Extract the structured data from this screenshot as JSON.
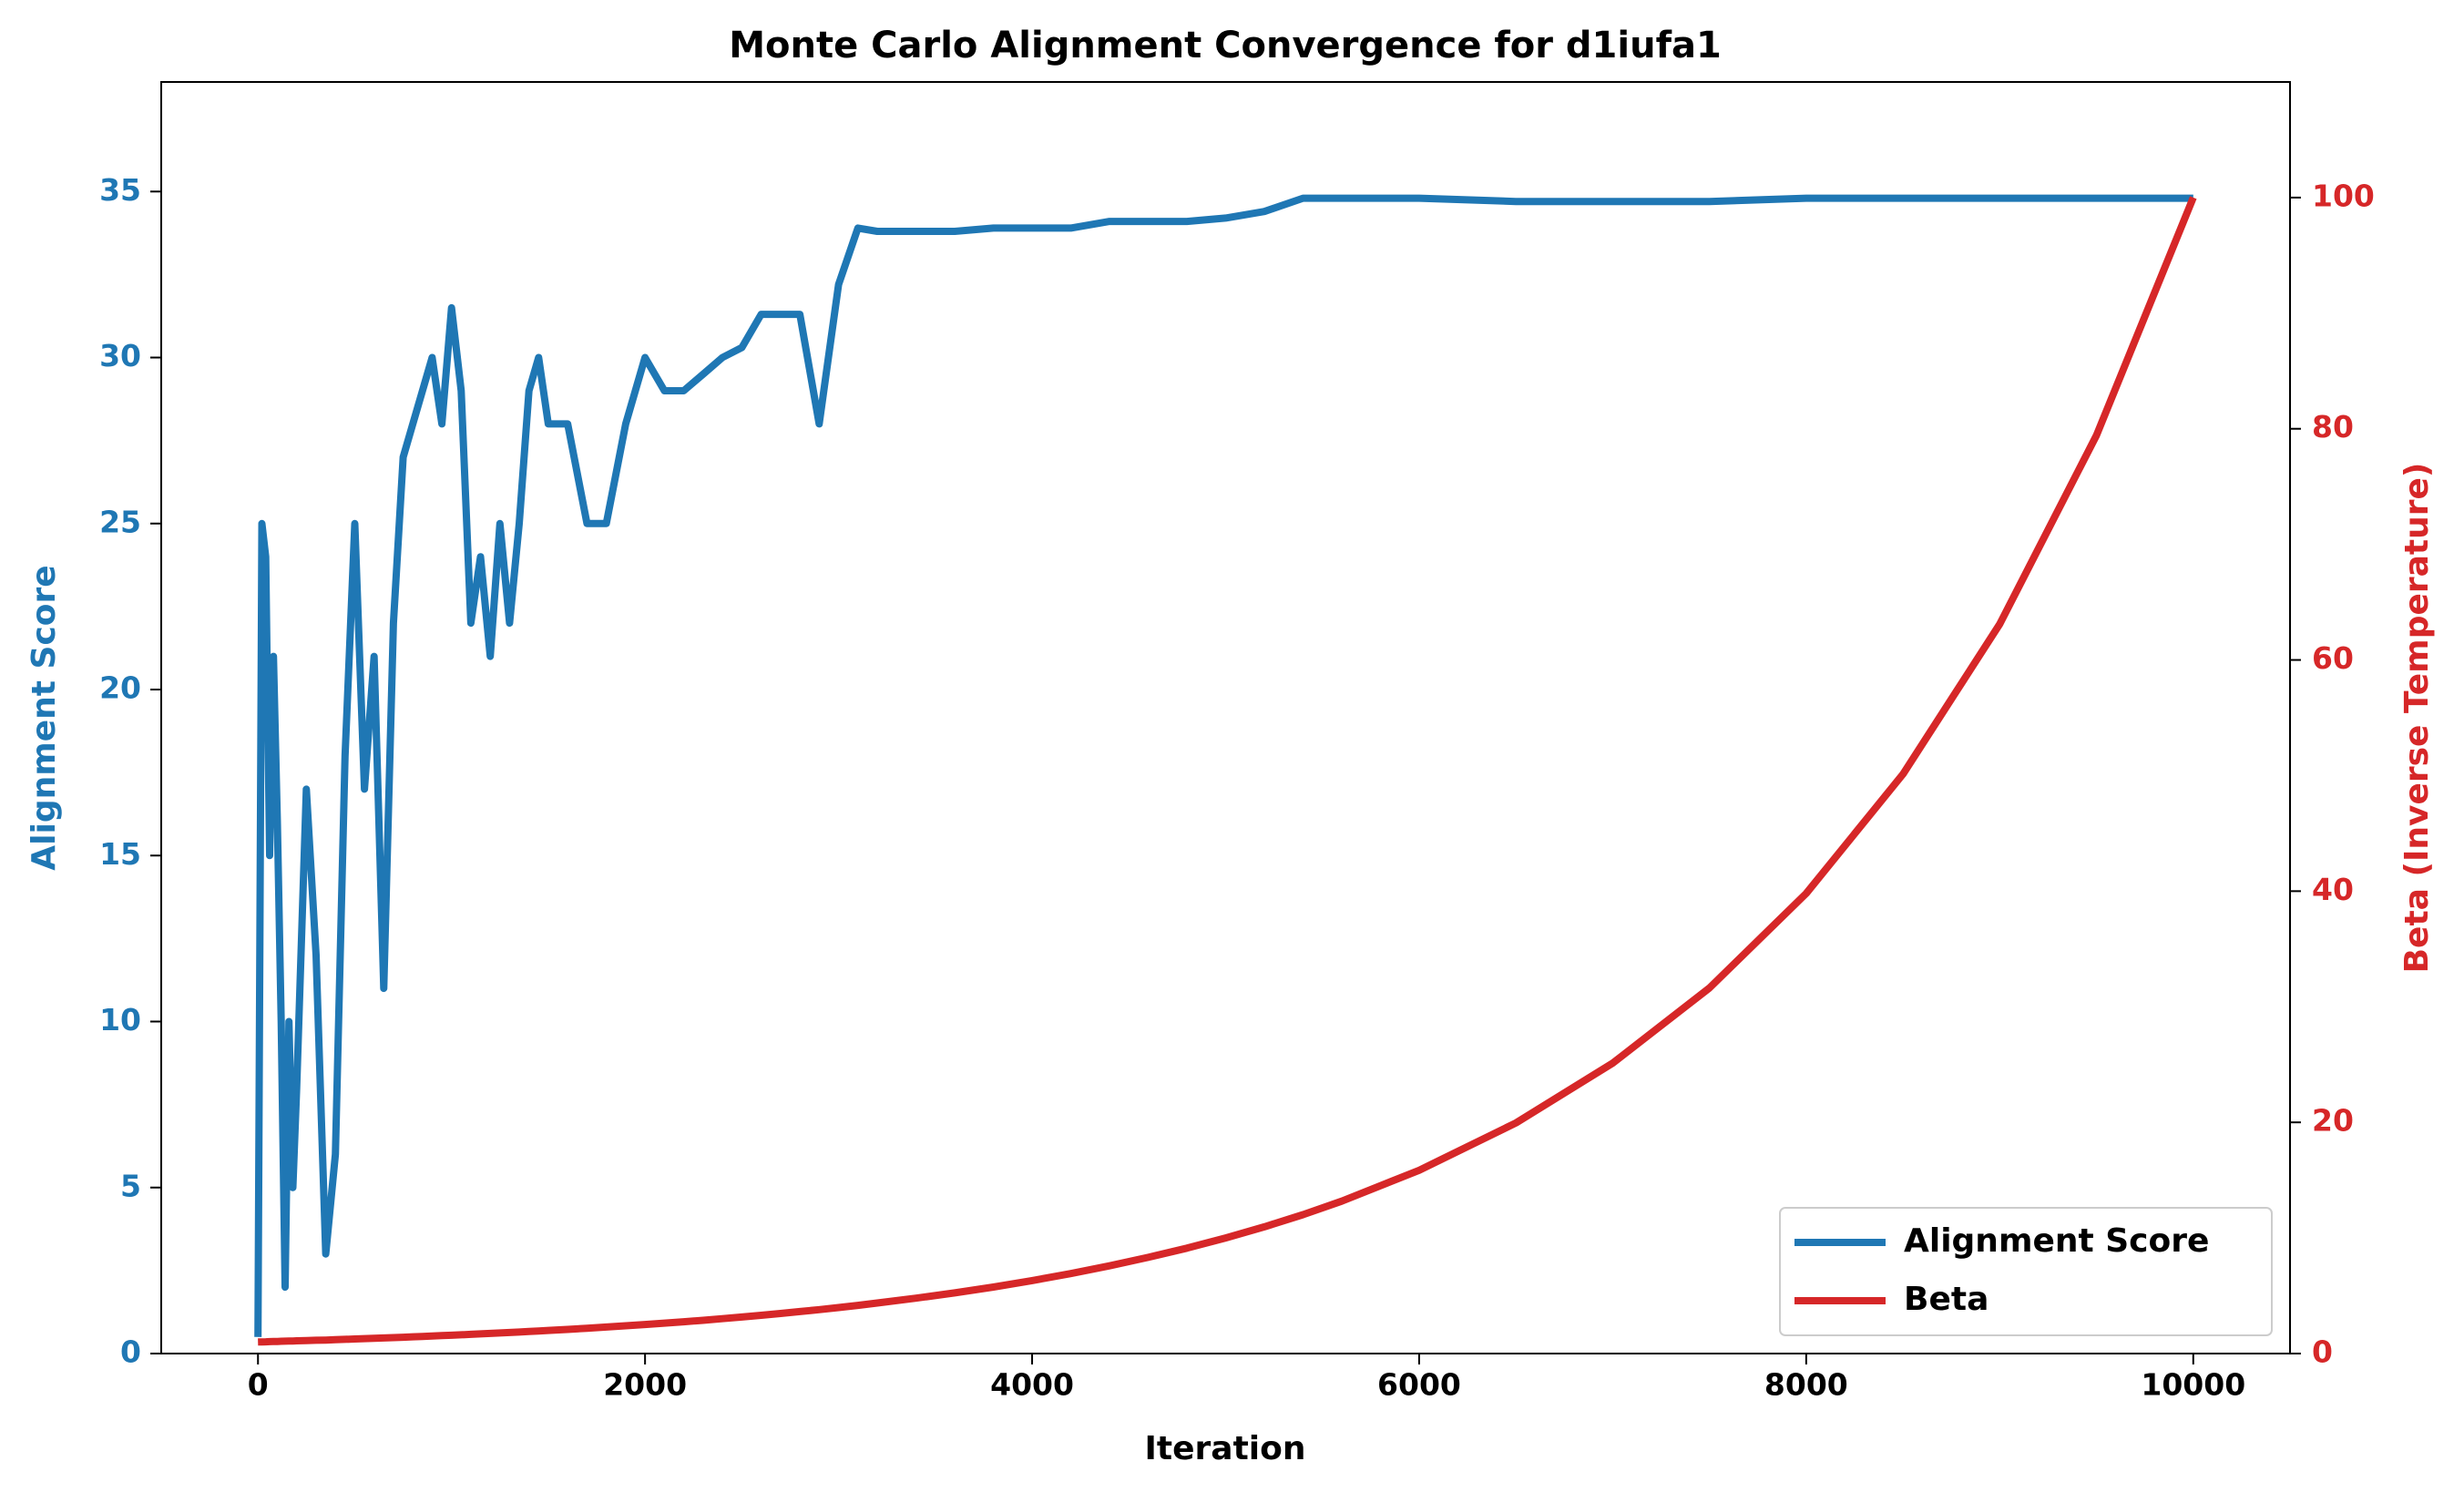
{
  "chart_data": {
    "type": "line",
    "title": "Monte Carlo Alignment Convergence for d1iufa1",
    "x_label": "Iteration",
    "y_label": "Alignment Score",
    "y2_label": "Beta (Inverse Temperature)",
    "x": [
      0,
      20,
      40,
      60,
      80,
      100,
      120,
      140,
      160,
      180,
      200,
      250,
      300,
      350,
      400,
      450,
      500,
      550,
      600,
      650,
      700,
      750,
      800,
      850,
      900,
      950,
      1000,
      1050,
      1100,
      1150,
      1200,
      1250,
      1300,
      1350,
      1400,
      1450,
      1500,
      1600,
      1700,
      1800,
      1900,
      2000,
      2100,
      2200,
      2300,
      2400,
      2500,
      2600,
      2700,
      2800,
      2900,
      3000,
      3100,
      3200,
      3400,
      3600,
      3800,
      4000,
      4200,
      4400,
      4600,
      4800,
      5000,
      5200,
      5400,
      5600,
      6000,
      6500,
      7000,
      7500,
      8000,
      8500,
      9000,
      9500,
      10000
    ],
    "series": [
      {
        "name": "Alignment Score",
        "color": "#1f77b4",
        "values": [
          0.5,
          25,
          24,
          15,
          21,
          16,
          10,
          2,
          10,
          5,
          8,
          17,
          12,
          3,
          6,
          18,
          25,
          17,
          21,
          11,
          22,
          27,
          28,
          29,
          30,
          28,
          31.5,
          29,
          22,
          24,
          21,
          25,
          22,
          25,
          29,
          30,
          28,
          28,
          25,
          25,
          28,
          30,
          29,
          29,
          29.5,
          30,
          30.3,
          31.3,
          31.3,
          31.3,
          28,
          32.2,
          33.9,
          33.8,
          33.8,
          33.8,
          33.9,
          33.9,
          33.9,
          34.1,
          34.1,
          34.1,
          34.2,
          34.4,
          34.8,
          34.8,
          34.8,
          34.7,
          34.7,
          34.7,
          34.8,
          34.8,
          34.8,
          34.8,
          34.8
        ]
      },
      {
        "name": "Beta",
        "color": "#d62728",
        "axis": "y2",
        "values": [
          1,
          1.01,
          1.02,
          1.03,
          1.04,
          1.05,
          1.06,
          1.07,
          1.08,
          1.09,
          1.1,
          1.12,
          1.15,
          1.17,
          1.2,
          1.23,
          1.26,
          1.29,
          1.32,
          1.35,
          1.38,
          1.41,
          1.45,
          1.48,
          1.51,
          1.55,
          1.58,
          1.62,
          1.66,
          1.7,
          1.74,
          1.78,
          1.82,
          1.86,
          1.91,
          1.95,
          2.0,
          2.09,
          2.19,
          2.29,
          2.4,
          2.51,
          2.63,
          2.75,
          2.88,
          3.02,
          3.16,
          3.31,
          3.47,
          3.63,
          3.8,
          3.98,
          4.17,
          4.37,
          4.79,
          5.25,
          5.75,
          6.31,
          6.92,
          7.59,
          8.32,
          9.12,
          10,
          10.96,
          12.02,
          13.18,
          15.85,
          19.95,
          25.12,
          31.62,
          39.81,
          50.12,
          63.1,
          79.43,
          100
        ]
      }
    ],
    "xlim": [
      -500,
      10500
    ],
    "xticks": [
      0,
      2000,
      4000,
      6000,
      8000,
      10000
    ],
    "ylim": [
      0,
      38.3
    ],
    "yticks": [
      0,
      5,
      10,
      15,
      20,
      25,
      30,
      35
    ],
    "y2lim": [
      0,
      110
    ],
    "y2ticks": [
      0,
      20,
      40,
      60,
      80,
      100
    ],
    "legend": "lower right"
  }
}
